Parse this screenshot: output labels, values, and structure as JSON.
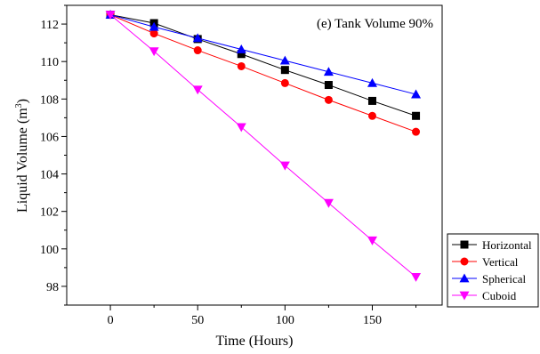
{
  "chart_data": {
    "type": "line",
    "annotation": "(e) Tank Volume 90%",
    "xlabel": "Time (Hours)",
    "ylabel_main": "Liquid Volume (m",
    "ylabel_sup": "3",
    "ylabel_close": ")",
    "xlim": [
      -25,
      190
    ],
    "ylim": [
      97,
      113
    ],
    "x_ticks": [
      0,
      50,
      100,
      150
    ],
    "x_minor_ticks": [
      25,
      75,
      125,
      175
    ],
    "y_ticks": [
      98,
      100,
      102,
      104,
      106,
      108,
      110,
      112
    ],
    "x_tick_labels": [
      "0",
      "50",
      "100",
      "150"
    ],
    "y_tick_labels": [
      "98",
      "100",
      "102",
      "104",
      "106",
      "108",
      "110",
      "112"
    ],
    "legend_position": "right-outside-bottom",
    "x": [
      0,
      25,
      50,
      75,
      100,
      125,
      150,
      175
    ],
    "series": [
      {
        "name": "Horizontal",
        "color": "#000000",
        "marker": "square",
        "values": [
          112.5,
          112.05,
          111.2,
          110.4,
          109.55,
          108.75,
          107.9,
          107.1
        ]
      },
      {
        "name": "Vertical",
        "color": "#ff0000",
        "marker": "circle",
        "values": [
          112.5,
          111.5,
          110.6,
          109.75,
          108.85,
          107.95,
          107.1,
          106.25
        ]
      },
      {
        "name": "Spherical",
        "color": "#0000ff",
        "marker": "triangle-up",
        "values": [
          112.5,
          111.85,
          111.25,
          110.65,
          110.05,
          109.45,
          108.85,
          108.25
        ]
      },
      {
        "name": "Cuboid",
        "color": "#ff00ff",
        "marker": "triangle-down",
        "values": [
          112.5,
          110.55,
          108.5,
          106.5,
          104.45,
          102.45,
          100.45,
          98.5
        ]
      }
    ]
  }
}
